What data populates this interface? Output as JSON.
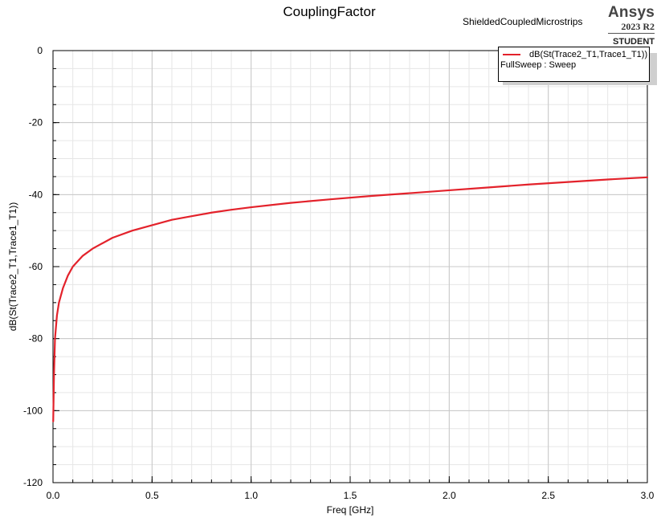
{
  "header": {
    "title": "CouplingFactor",
    "subtitle": "ShieldedCoupledMicrostrips",
    "brand": "Ansys",
    "version": "2023 R2",
    "edition": "STUDENT"
  },
  "legend": {
    "entry_label": "dB(St(Trace2_T1,Trace1_T1))",
    "sweep_label": "FullSweep : Sweep"
  },
  "colors": {
    "series": "#e3222b",
    "major_grid": "#c8c8c8",
    "minor_grid": "#e6e6e6"
  },
  "chart_data": {
    "type": "line",
    "title": "CouplingFactor",
    "xlabel": "Freq [GHz]",
    "ylabel": "dB(St(Trace2_T1,Trace1_T1))",
    "xlim": [
      0,
      3.0
    ],
    "ylim": [
      -120,
      0
    ],
    "x_ticks": [
      "0.0",
      "0.5",
      "1.0",
      "1.5",
      "2.0",
      "2.5",
      "3.0"
    ],
    "y_ticks": [
      "0",
      "-20",
      "-40",
      "-60",
      "-80",
      "-100",
      "-120"
    ],
    "grid": true,
    "legend_position": "top-right",
    "series": [
      {
        "name": "dB(St(Trace2_T1,Trace1_T1))",
        "x": [
          0.001,
          0.005,
          0.01,
          0.02,
          0.03,
          0.05,
          0.075,
          0.1,
          0.15,
          0.2,
          0.3,
          0.4,
          0.5,
          0.6,
          0.7,
          0.8,
          0.9,
          1.0,
          1.2,
          1.4,
          1.6,
          1.8,
          2.0,
          2.2,
          2.4,
          2.6,
          2.8,
          3.0
        ],
        "y": [
          -103,
          -90,
          -80,
          -73.5,
          -70,
          -66,
          -62.5,
          -60,
          -57,
          -55,
          -52,
          -50,
          -48.5,
          -47,
          -46,
          -45,
          -44.2,
          -43.5,
          -42.3,
          -41.3,
          -40.4,
          -39.6,
          -38.8,
          -38.0,
          -37.2,
          -36.5,
          -35.8,
          -35.2
        ]
      }
    ]
  }
}
